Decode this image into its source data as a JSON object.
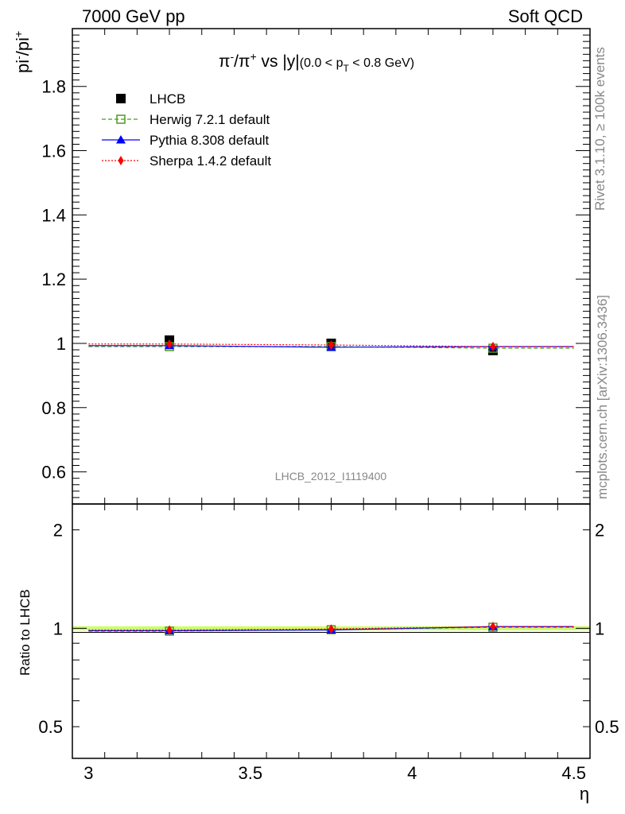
{
  "header": {
    "left": "7000 GeV pp",
    "right": "Soft QCD"
  },
  "side_text": {
    "rivet": "Rivet 3.1.10, ≥ 100k events",
    "source": "mcplots.cern.ch [arXiv:1306.3436]"
  },
  "watermark": "LHCB_2012_I1119400",
  "chart_data": [
    {
      "type": "scatter",
      "title": "π⁻/π⁺ vs |y|(0.0 < pT < 0.8 GeV)",
      "ylabel": "pi⁻/pi⁺",
      "xlabel": "η",
      "xlim": [
        2.95,
        4.55
      ],
      "ylim": [
        0.5,
        1.98
      ],
      "x_ticks": [
        "3",
        "3.5",
        "4",
        "4.5"
      ],
      "y_ticks": [
        "0.6",
        "0.8",
        "1",
        "1.2",
        "1.4",
        "1.6",
        "1.8"
      ],
      "legend_position": "top-left",
      "x": [
        3.25,
        3.75,
        4.25
      ],
      "series": [
        {
          "name": "LHCB",
          "values": [
            1.01,
            1.0,
            0.978
          ],
          "color": "#000000",
          "marker": "filled-square",
          "line": "none"
        },
        {
          "name": "Herwig 7.2.1 default",
          "values": [
            0.99,
            0.99,
            0.985
          ],
          "color": "#4f9a1f",
          "marker": "open-square",
          "line": "dashed"
        },
        {
          "name": "Pythia 8.308 default",
          "values": [
            0.993,
            0.988,
            0.99
          ],
          "color": "#0000ff",
          "marker": "triangle",
          "line": "solid"
        },
        {
          "name": "Sherpa 1.4.2 default",
          "values": [
            0.998,
            0.995,
            0.99
          ],
          "color": "#ff0000",
          "marker": "diamond",
          "line": "dotted"
        }
      ]
    },
    {
      "type": "scatter",
      "ylabel": "Ratio to LHCB",
      "xlabel": "η",
      "xlim": [
        2.95,
        4.55
      ],
      "ylim": [
        0.4,
        2.4
      ],
      "y_scale": "log",
      "x_ticks": [
        "3",
        "3.5",
        "4",
        "4.5"
      ],
      "y_ticks": [
        "0.5",
        "1",
        "2"
      ],
      "reference_band": {
        "value": 1,
        "color": "#ccff66"
      },
      "x": [
        3.25,
        3.75,
        4.25
      ],
      "series": [
        {
          "name": "Herwig 7.2.1 default",
          "values": [
            0.98,
            0.99,
            1.007
          ],
          "color": "#4f9a1f",
          "marker": "open-square",
          "line": "dashed"
        },
        {
          "name": "Pythia 8.308 default",
          "values": [
            0.983,
            0.988,
            1.012
          ],
          "color": "#0000ff",
          "marker": "triangle",
          "line": "solid"
        },
        {
          "name": "Sherpa 1.4.2 default",
          "values": [
            0.988,
            0.995,
            1.012
          ],
          "color": "#ff0000",
          "marker": "diamond",
          "line": "dotted"
        }
      ]
    }
  ]
}
